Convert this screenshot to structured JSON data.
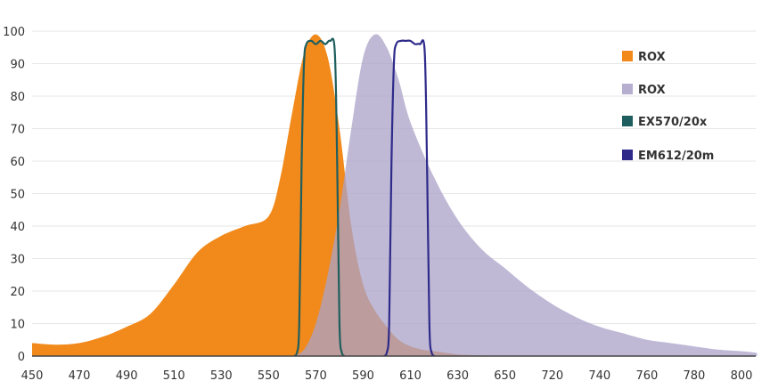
{
  "chart_data": {
    "type": "area",
    "title": "",
    "xlabel": "",
    "ylabel": "",
    "x_tick_labels": [
      "450",
      "470",
      "490",
      "510",
      "530",
      "550",
      "570",
      "590",
      "610",
      "630",
      "650",
      "720",
      "740",
      "760",
      "780",
      "800"
    ],
    "y_ticks": [
      0,
      10,
      20,
      30,
      40,
      50,
      60,
      70,
      80,
      90,
      100
    ],
    "ylim": [
      0,
      100
    ],
    "grid": "horizontal",
    "legend_position": "right",
    "series": [
      {
        "name": "ROX",
        "kind": "excitation",
        "style": "filled",
        "color": "#F18A1B",
        "x_index": [
          0,
          0.5,
          1,
          1.5,
          2,
          2.5,
          3,
          3.5,
          4,
          4.5,
          5,
          5.25,
          5.5,
          5.75,
          6,
          6.25,
          6.5,
          6.75,
          7,
          7.25,
          7.5,
          7.75,
          8,
          8.25,
          8.5,
          8.75,
          9,
          9.25,
          9.5,
          10
        ],
        "values": [
          4,
          3.5,
          4,
          6,
          9,
          13,
          22,
          32,
          37,
          40,
          43,
          55,
          75,
          93,
          99,
          92,
          70,
          40,
          22,
          14,
          9,
          5,
          3,
          2,
          1.5,
          1,
          0.5,
          0.3,
          0.2,
          0.1
        ]
      },
      {
        "name": "ROX",
        "kind": "emission",
        "style": "filled",
        "color": "#A9A1C8",
        "x_index": [
          5.5,
          5.75,
          6,
          6.25,
          6.5,
          6.75,
          7,
          7.25,
          7.5,
          7.75,
          8,
          8.5,
          9,
          9.5,
          10,
          10.5,
          11,
          11.5,
          12,
          12.5,
          13,
          13.5,
          14,
          14.5,
          15,
          15.33
        ],
        "values": [
          0,
          2,
          10,
          25,
          45,
          70,
          92,
          99,
          95,
          85,
          72,
          55,
          42,
          33,
          27,
          21,
          16,
          12,
          9,
          7,
          5,
          4,
          3,
          2,
          1.5,
          1
        ]
      },
      {
        "name": "EX570/20x",
        "kind": "filter",
        "style": "line",
        "color": "#1F5E5E",
        "x_index": [
          5.55,
          5.6,
          5.65,
          5.7,
          5.75,
          5.8,
          5.9,
          6,
          6.1,
          6.2,
          6.3,
          6.4,
          6.45,
          6.5,
          6.55,
          6.6
        ],
        "values": [
          0,
          1,
          10,
          60,
          90,
          96,
          97,
          96,
          97,
          96,
          97,
          94,
          60,
          10,
          1,
          0
        ]
      },
      {
        "name": "EM612/20m",
        "kind": "filter",
        "style": "line",
        "color": "#2E2A8A",
        "x_index": [
          7.45,
          7.5,
          7.55,
          7.6,
          7.65,
          7.7,
          7.8,
          7.9,
          8,
          8.1,
          8.2,
          8.3,
          8.35,
          8.4,
          8.45,
          8.5
        ],
        "values": [
          0,
          1,
          10,
          60,
          90,
          96,
          97,
          97,
          97,
          96,
          96,
          94,
          60,
          10,
          1,
          0
        ]
      }
    ]
  }
}
